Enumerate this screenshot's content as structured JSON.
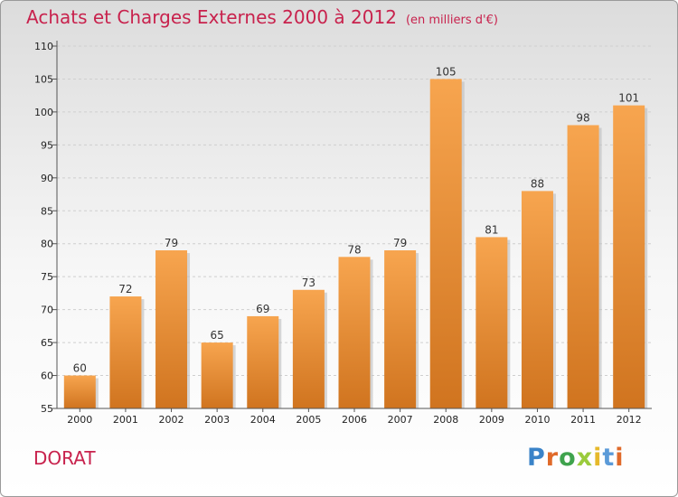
{
  "title": "Achats et Charges Externes 2000 à 2012",
  "unit": "(en milliers d'€)",
  "commune": "DORAT",
  "logo": "Proxiti",
  "colors": {
    "bar_light": "#f7a54f",
    "bar_dark": "#d0741f",
    "title": "#c8224d"
  },
  "chart_data": {
    "type": "bar",
    "title": "Achats et Charges Externes 2000 à 2012",
    "xlabel": "",
    "ylabel": "",
    "categories": [
      "2000",
      "2001",
      "2002",
      "2003",
      "2004",
      "2005",
      "2006",
      "2007",
      "2008",
      "2009",
      "2010",
      "2011",
      "2012"
    ],
    "values": [
      60,
      72,
      79,
      65,
      69,
      73,
      78,
      79,
      105,
      81,
      88,
      98,
      101
    ],
    "ylim": [
      55,
      110
    ],
    "yticks": [
      55,
      60,
      65,
      70,
      75,
      80,
      85,
      90,
      95,
      100,
      105,
      110
    ],
    "grid": true
  }
}
